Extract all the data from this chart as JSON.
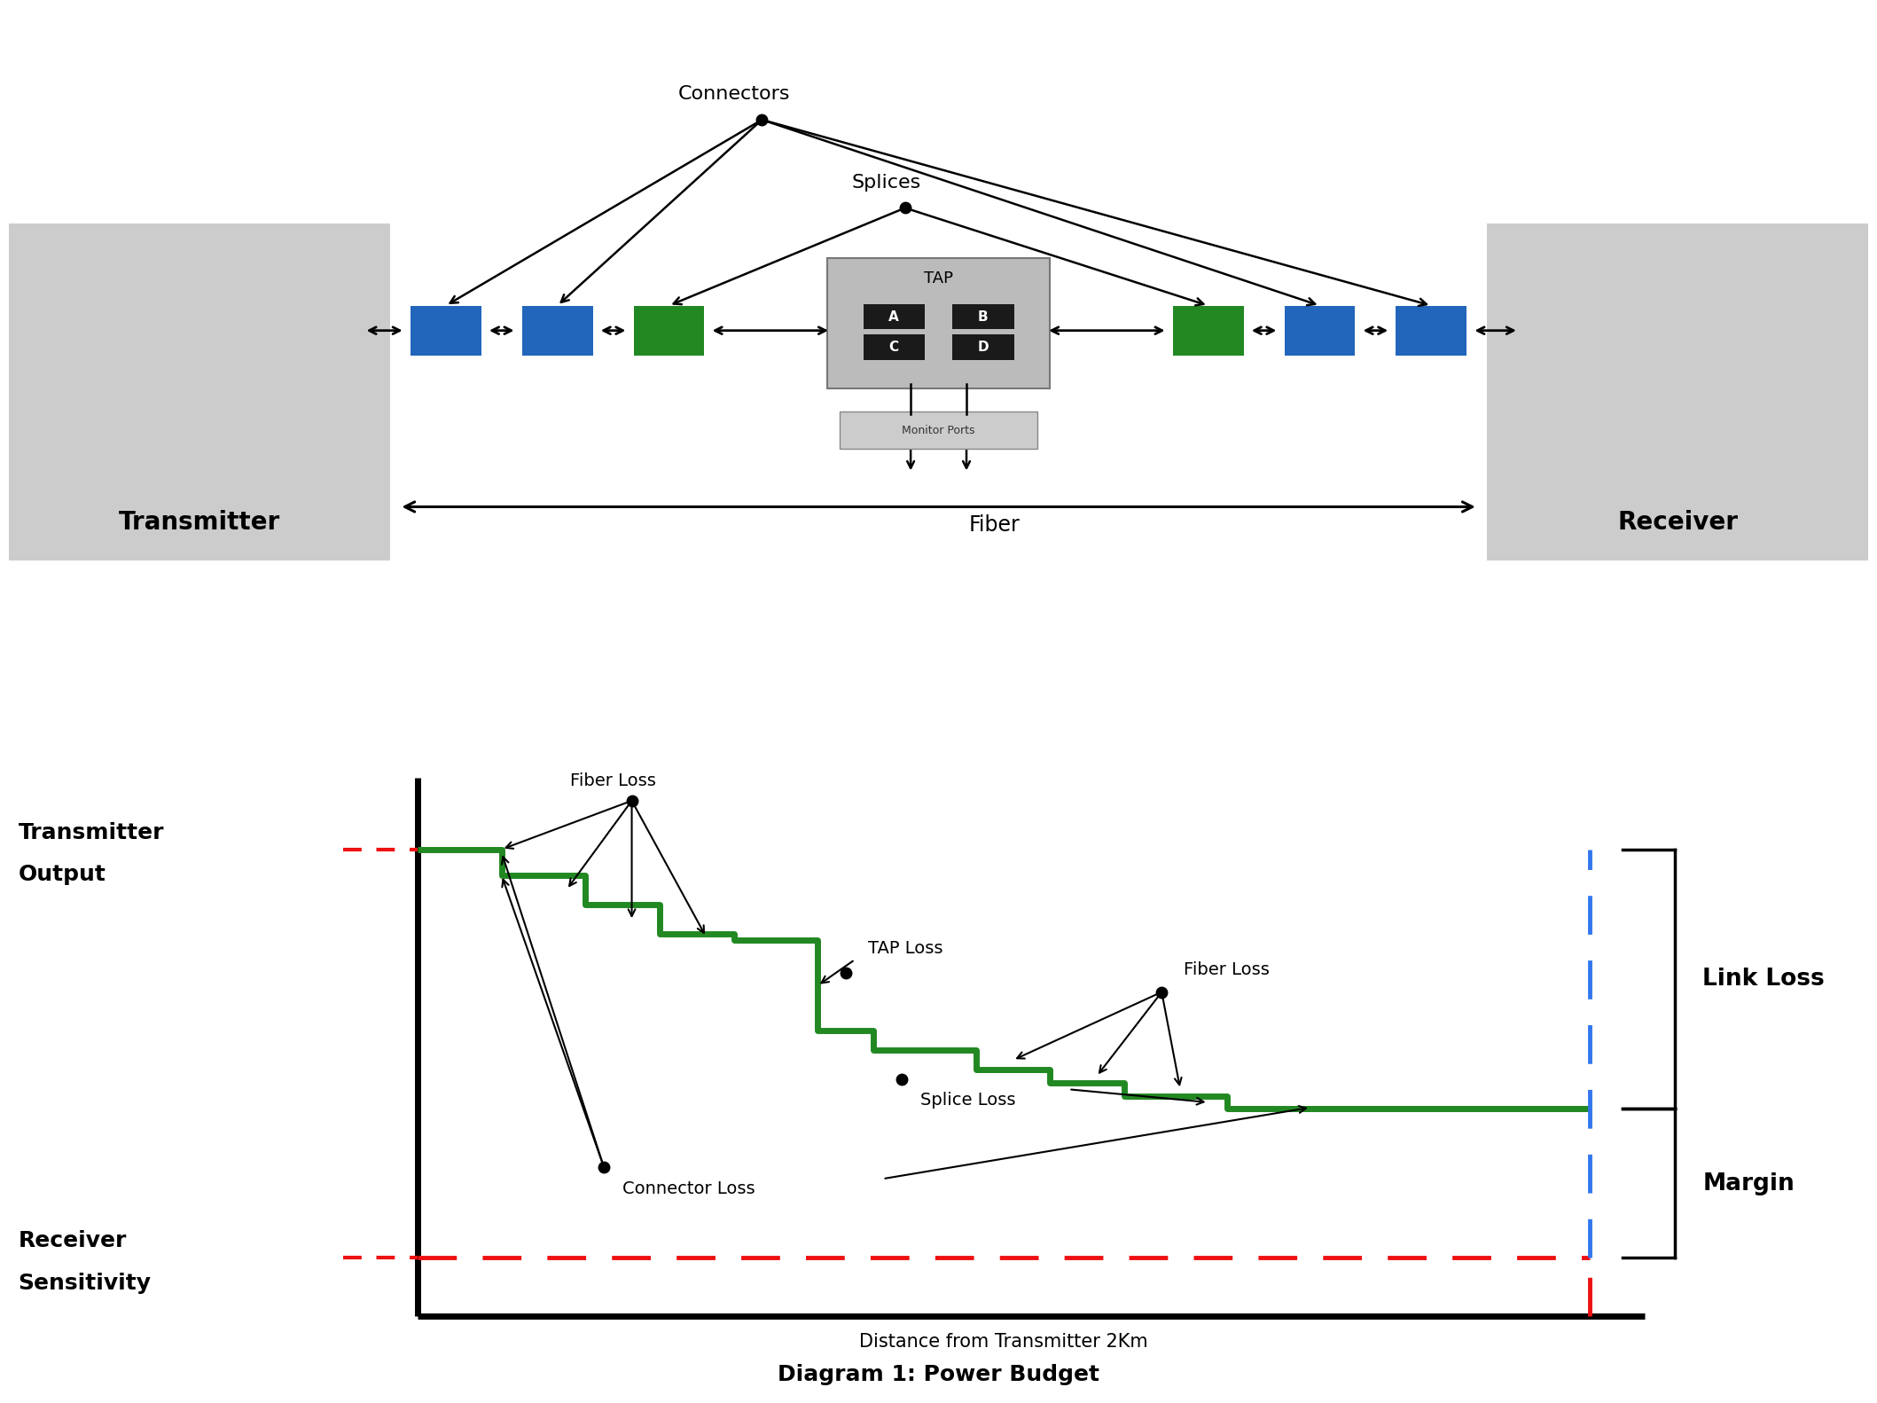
{
  "bg_color": "#ffffff",
  "gray_box_color": "#cccccc",
  "blue_box_color": "#2266bb",
  "green_box_color": "#228822",
  "tap_bg_color": "#bbbbbb",
  "tap_port_color": "#1a1a1a",
  "green_line_color": "#228822",
  "red_dash_color": "#ee1111",
  "blue_dash_color": "#3377ee",
  "title_text": "Diagram 1: Power Budget",
  "transmitter_text": "Transmitter",
  "receiver_text": "Receiver",
  "fiber_text": "Fiber",
  "connectors_text": "Connectors",
  "splices_text": "Splices",
  "tap_text": "TAP",
  "monitor_text": "Monitor Ports",
  "tx_output_line1": "Transmitter",
  "tx_output_line2": "Output",
  "rx_sens_line1": "Receiver",
  "rx_sens_line2": "Sensitivity",
  "fiber_loss_text1": "Fiber Loss",
  "fiber_loss_text2": "Fiber Loss",
  "tap_loss_text": "TAP Loss",
  "splice_loss_text": "Splice Loss",
  "connector_loss_text": "Connector Loss",
  "link_loss_text": "Link Loss",
  "margin_text": "Margin",
  "distance_text": "Distance from Transmitter 2Km"
}
